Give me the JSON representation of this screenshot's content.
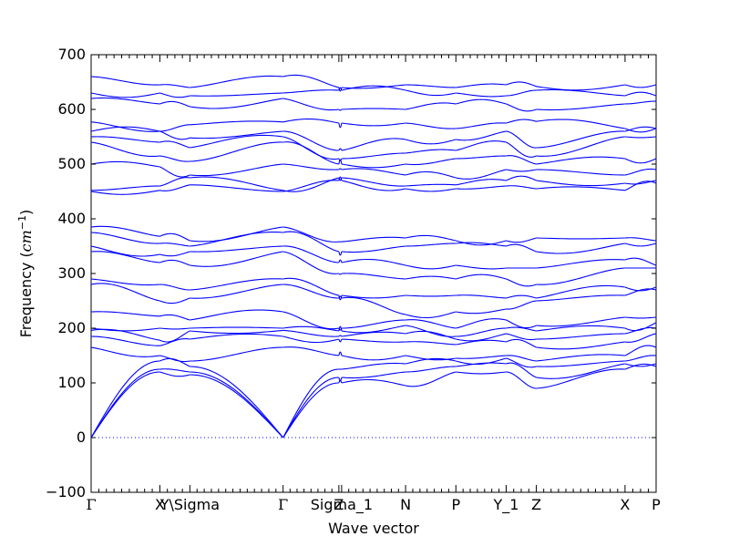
{
  "chart_data": {
    "type": "line",
    "title": "",
    "xlabel": "Wave vector",
    "ylabel_text": "Frequency (",
    "ylabel_unit": "cm",
    "ylabel_exp": "−1",
    "ylabel_close": ")",
    "ylim": [
      -100,
      700
    ],
    "yticks": [
      -100,
      0,
      100,
      200,
      300,
      400,
      500,
      600,
      700
    ],
    "ytick_labels": [
      "−100",
      "0",
      "100",
      "200",
      "300",
      "400",
      "500",
      "600",
      "700"
    ],
    "line_color": "#0000ff",
    "zero_line": {
      "y": 0,
      "style": "dotted"
    },
    "grid": false,
    "high_symmetry_points": [
      {
        "label": "Γ",
        "x": 0.0
      },
      {
        "label": "X",
        "x": 0.1217
      },
      {
        "label": "Y\\Sigma",
        "x": 0.1748
      },
      {
        "label": "Γ",
        "x": 0.3398
      },
      {
        "label": "Z",
        "x": 0.4385
      },
      {
        "label": "Sigma_1",
        "x": 0.4434
      },
      {
        "label": "N",
        "x": 0.5566
      },
      {
        "label": "P",
        "x": 0.6456
      },
      {
        "label": "Y_1",
        "x": 0.7346
      },
      {
        "label": "Z",
        "x": 0.788
      },
      {
        "label": "X",
        "x": 0.945
      },
      {
        "label": "P",
        "x": 1.0
      }
    ],
    "branch_anchors": {
      "Gamma": [
        0,
        0,
        0,
        165,
        185,
        196,
        200,
        230,
        280,
        290,
        340,
        350,
        375,
        385,
        450,
        452,
        500,
        540,
        550,
        560,
        577,
        620,
        630,
        660
      ],
      "X": [
        120,
        125,
        140,
        150,
        168,
        178,
        200,
        222,
        250,
        280,
        320,
        335,
        355,
        368,
        452,
        460,
        495,
        515,
        540,
        560,
        560,
        610,
        630,
        645
      ],
      "Y": [
        115,
        120,
        130,
        140,
        180,
        195,
        200,
        215,
        255,
        270,
        315,
        340,
        350,
        360,
        462,
        475,
        480,
        505,
        530,
        548,
        572,
        605,
        625,
        640
      ],
      "Z": [
        100,
        110,
        125,
        150,
        180,
        185,
        195,
        200,
        255,
        260,
        300,
        320,
        340,
        358,
        470,
        475,
        490,
        500,
        510,
        525,
        575,
        600,
        635,
        640
      ],
      "N": [
        95,
        120,
        135,
        150,
        175,
        190,
        205,
        215,
        225,
        260,
        290,
        315,
        350,
        365,
        455,
        460,
        480,
        500,
        520,
        545,
        575,
        600,
        635,
        645
      ],
      "P": [
        120,
        130,
        140,
        145,
        170,
        180,
        185,
        200,
        230,
        260,
        290,
        315,
        355,
        360,
        455,
        462,
        475,
        510,
        525,
        545,
        565,
        610,
        630,
        640
      ],
      "Y1": [
        120,
        135,
        145,
        150,
        175,
        190,
        200,
        215,
        235,
        255,
        290,
        310,
        350,
        360,
        460,
        470,
        490,
        515,
        540,
        560,
        575,
        610,
        625,
        645
      ],
      "Z2": [
        90,
        110,
        130,
        140,
        165,
        180,
        195,
        205,
        250,
        255,
        280,
        310,
        340,
        365,
        455,
        470,
        490,
        500,
        515,
        530,
        578,
        600,
        635,
        642
      ],
      "X2": [
        125,
        135,
        140,
        150,
        175,
        190,
        200,
        220,
        260,
        275,
        310,
        325,
        355,
        365,
        452,
        465,
        480,
        510,
        550,
        560,
        565,
        610,
        625,
        645
      ],
      "P2": [
        130,
        135,
        150,
        165,
        190,
        200,
        210,
        220,
        270,
        275,
        310,
        315,
        355,
        360,
        465,
        470,
        490,
        510,
        550,
        565,
        565,
        615,
        625,
        645
      ]
    }
  }
}
